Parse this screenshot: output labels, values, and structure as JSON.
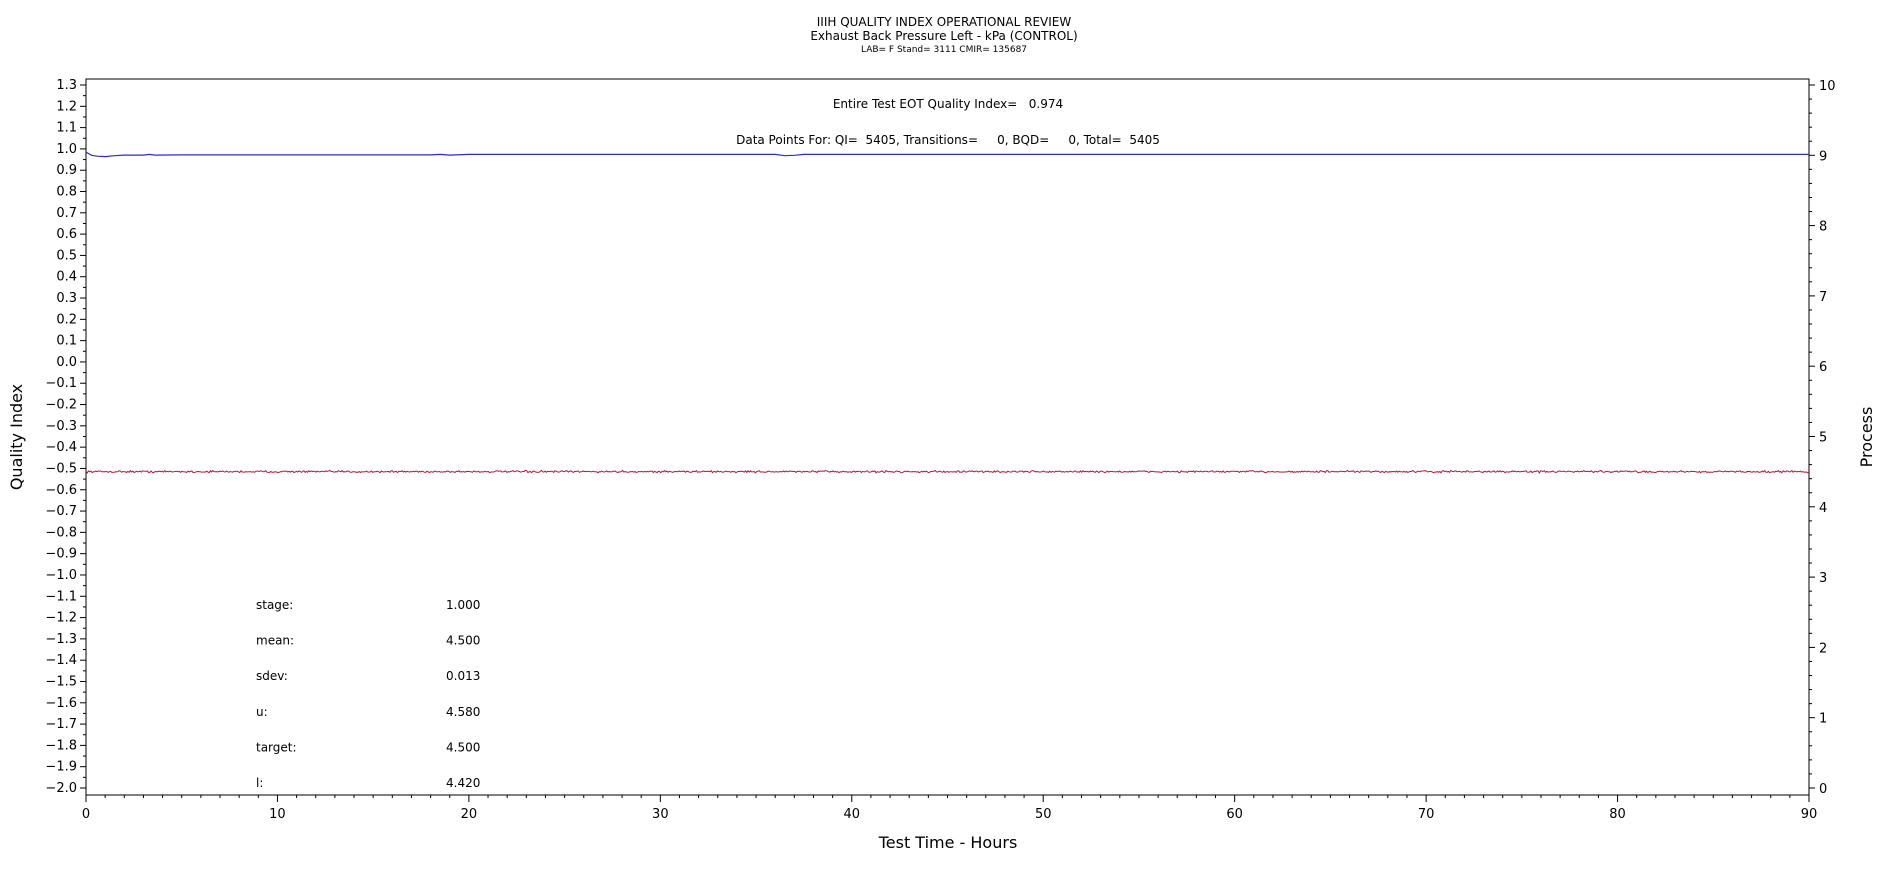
{
  "chart_data": {
    "type": "line",
    "title": "IIIH QUALITY INDEX OPERATIONAL REVIEW",
    "subtitle": "Exhaust Back Pressure Left - kPa (CONTROL)",
    "subtitle2": "LAB= F Stand= 3111 CMIR= 135687",
    "xlabel": "Test Time - Hours",
    "ylabel_left": "Quality Index",
    "ylabel_right": "Process",
    "xlim": [
      0,
      90
    ],
    "ylim_left": [
      -2.0,
      1.3
    ],
    "ylim_right": [
      0,
      10
    ],
    "x_ticks": [
      "0",
      "10",
      "20",
      "30",
      "40",
      "50",
      "60",
      "70",
      "80",
      "90"
    ],
    "y_left_ticks": [
      "1.3",
      "1.2",
      "1.1",
      "1.0",
      "0.9",
      "0.8",
      "0.7",
      "0.6",
      "0.5",
      "0.4",
      "0.3",
      "0.2",
      "0.1",
      "0.0",
      "-0.1",
      "-0.2",
      "-0.3",
      "-0.4",
      "-0.5",
      "-0.6",
      "-0.7",
      "-0.8",
      "-0.9",
      "-1.0",
      "-1.1",
      "-1.2",
      "-1.3",
      "-1.4",
      "-1.5",
      "-1.6",
      "-1.7",
      "-1.8",
      "-1.9",
      "-2.0"
    ],
    "y_right_ticks": [
      "10",
      "9",
      "8",
      "7",
      "6",
      "5",
      "4",
      "3",
      "2",
      "1",
      "0"
    ],
    "annotations": {
      "eot_quality_index": "Entire Test EOT Quality Index=   0.974",
      "data_points": "Data Points For: QI=  5405, Transitions=     0, BQD=     0, Total=  5405"
    },
    "stats": [
      {
        "label": "stage:",
        "value": "1.000"
      },
      {
        "label": "mean:",
        "value": "4.500"
      },
      {
        "label": "sdev:",
        "value": "0.013"
      },
      {
        "label": "u:",
        "value": "4.580"
      },
      {
        "label": "target:",
        "value": "4.500"
      },
      {
        "label": "l:",
        "value": "4.420"
      }
    ],
    "series": [
      {
        "axis": "left",
        "color": "#2a2ad0",
        "points": [
          [
            0,
            0.985
          ],
          [
            0.3,
            0.97
          ],
          [
            0.6,
            0.966
          ],
          [
            1.0,
            0.964
          ],
          [
            1.5,
            0.968
          ],
          [
            2,
            0.971
          ],
          [
            3,
            0.971
          ],
          [
            3.3,
            0.974
          ],
          [
            3.6,
            0.971
          ],
          [
            5,
            0.972
          ],
          [
            10,
            0.972
          ],
          [
            18,
            0.972
          ],
          [
            18.5,
            0.974
          ],
          [
            19,
            0.971
          ],
          [
            20,
            0.974
          ],
          [
            30,
            0.974
          ],
          [
            36,
            0.974
          ],
          [
            36.5,
            0.968
          ],
          [
            37,
            0.97
          ],
          [
            37.5,
            0.974
          ],
          [
            45,
            0.974
          ],
          [
            60,
            0.974
          ],
          [
            75,
            0.974
          ],
          [
            90,
            0.974
          ]
        ]
      },
      {
        "axis": "right",
        "color": "#c0103a",
        "mean": 4.5,
        "noise": 0.013
      }
    ]
  }
}
